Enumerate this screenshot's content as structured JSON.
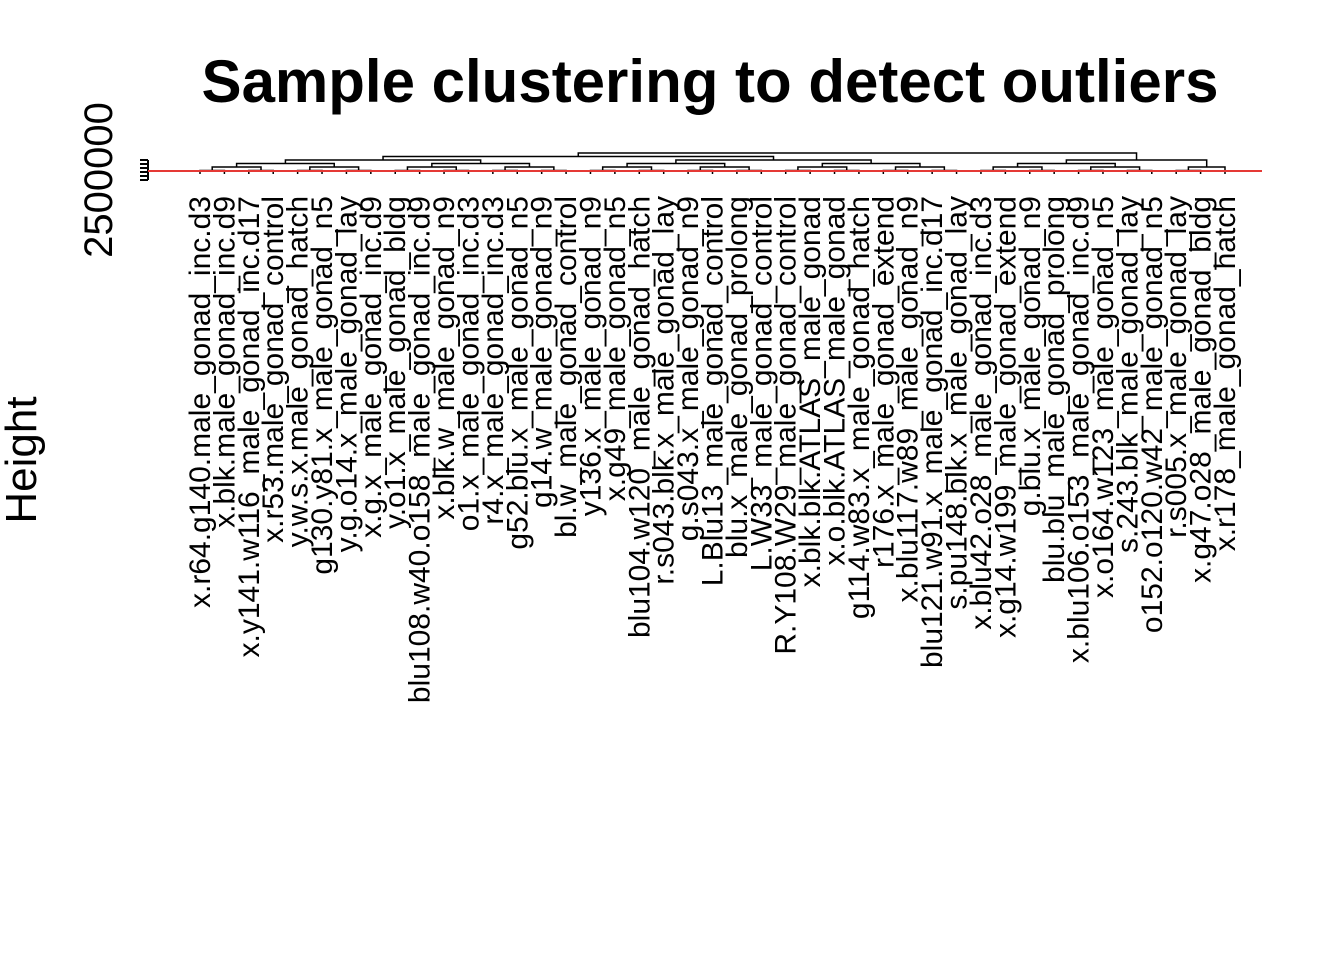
{
  "chart_data": {
    "type": "dendrogram",
    "title": "Sample clustering to detect outliers",
    "xlabel": "",
    "ylabel": "Height",
    "yticks": [
      2500000
    ],
    "cut_line": {
      "height": 150000,
      "color": "#e53935"
    },
    "leaves": [
      "x.r64.g140.male_gonad_inc.d3",
      "x.blk.male_gonad_inc.d9",
      "x.y141.w116_male_gonad_inc.d17",
      "x.r53.male_gonad_control",
      "y.w.s.x.male_gonad_hatch",
      "g130.y81.x_male_gonad_n5",
      "y.g.o14.x_male_gonad_lay",
      "x.g.x_male_gonad_inc.d9",
      "y.o1.x_male_gonad_bldg",
      "blu108.w40.o158_male_gonad_inc.d9",
      "x.blk.w_male_gonad_n9",
      "o1.x_male_gonad_inc.d3",
      "r4.x_male_gonad_inc.d3",
      "g52.blu.x_male_gonad_n5",
      "g14.w_male_gonad_n9",
      "bl.w_male_gonad_control",
      "y136.x_male_gonad_n9",
      "x.g49_male_gonad_n5",
      "blu104.w120_male_gonad_hatch",
      "r.s043.blk.x_male_gonad_lay",
      "g.s043.x_male_gonad_n9",
      "L.Blu13_male_gonad_control",
      "blu.x_male_gonad_prolong",
      "L.W33_male_gonad_control",
      "R.Y108.W29_male_gonad_control",
      "x.blk.blk.ATLAS_male_gonad",
      "x.o.blk.ATLAS_male_gonad",
      "g114.w83.x_male_gonad_hatch",
      "r176.x_male_gonad_extend",
      "x.blu117.w89_male_gonad_n9",
      "blu121.w91.x_male_gonad_inc.d17",
      "s.pu148.blk.x_male_gonad_lay",
      "x.blu42.o28_male_gonad_inc.d3",
      "x.g14.w199_male_gonad_extend",
      "g.blu.x_male_gonad_n9",
      "blu.blu_male_gonad_prolong",
      "x.blu106.o153_male_gonad_inc.d9",
      "x.o164.w123_male_gonad_n5",
      "s.243.blk_male_gonad_lay",
      "o152.o120.w42_male_gonad_n5",
      "r.s005.x_male_gonad_lay",
      "x.g47.o28_male_gonad_bldg",
      "x.r178_male_gonad_hatch"
    ]
  }
}
